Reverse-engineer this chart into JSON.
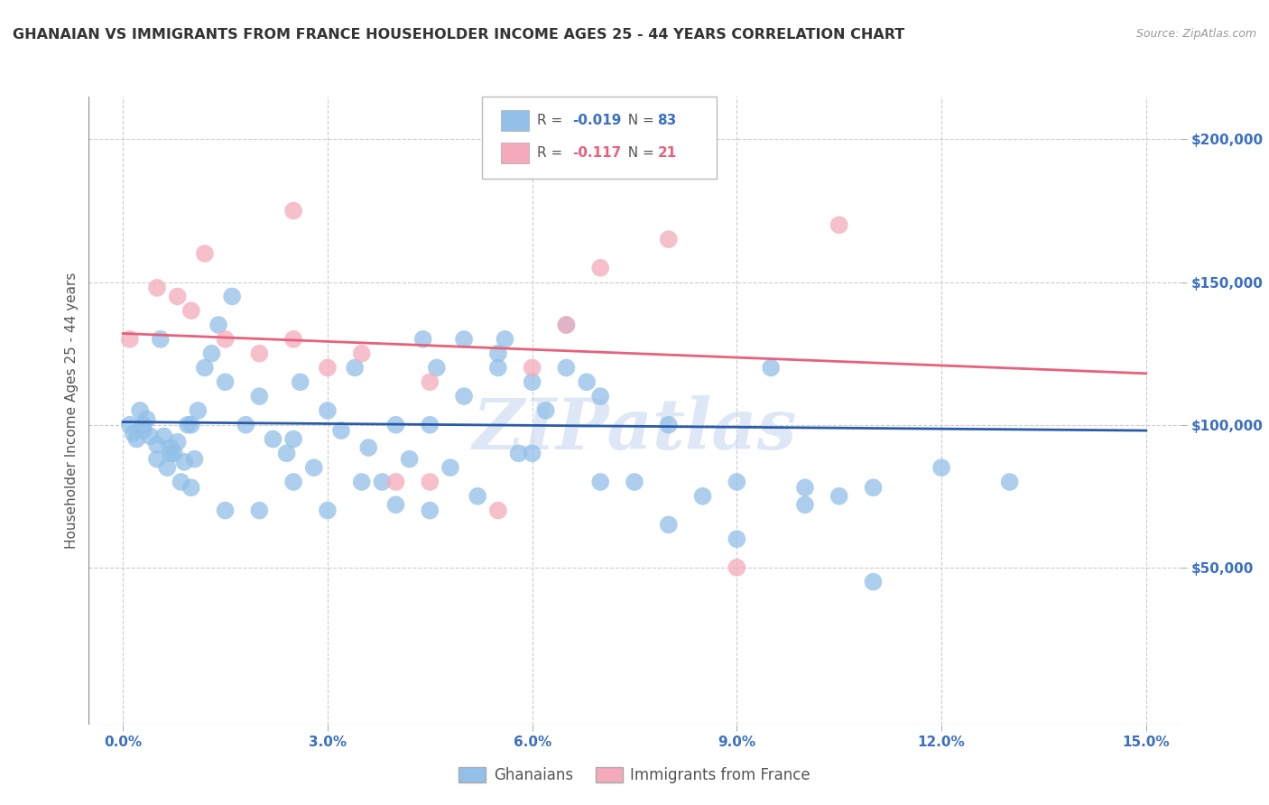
{
  "title": "GHANAIAN VS IMMIGRANTS FROM FRANCE HOUSEHOLDER INCOME AGES 25 - 44 YEARS CORRELATION CHART",
  "source": "Source: ZipAtlas.com",
  "xlabel_vals": [
    0.0,
    3.0,
    6.0,
    9.0,
    12.0,
    15.0
  ],
  "ylabel": "Householder Income Ages 25 - 44 years",
  "ylabel_vals": [
    50000,
    100000,
    150000,
    200000
  ],
  "ylabel_labels": [
    "$50,000",
    "$100,000",
    "$150,000",
    "$200,000"
  ],
  "xlim": [
    -0.5,
    15.5
  ],
  "ylim": [
    -5000,
    215000
  ],
  "blue_R": "-0.019",
  "blue_N": "83",
  "pink_R": "-0.117",
  "pink_N": "21",
  "blue_color": "#92C0E8",
  "pink_color": "#F4AABB",
  "blue_line_color": "#2B5BA8",
  "pink_line_color": "#E8607A",
  "watermark": "ZIPatlas",
  "legend_blue_label": "Ghanaians",
  "legend_pink_label": "Immigrants from France",
  "blue_x": [
    0.1,
    0.15,
    0.2,
    0.25,
    0.3,
    0.35,
    0.4,
    0.5,
    0.55,
    0.6,
    0.65,
    0.7,
    0.75,
    0.8,
    0.85,
    0.9,
    0.95,
    1.0,
    1.05,
    1.1,
    1.2,
    1.3,
    1.4,
    1.5,
    1.6,
    1.8,
    2.0,
    2.2,
    2.4,
    2.6,
    2.8,
    3.0,
    3.2,
    3.4,
    3.6,
    3.8,
    4.0,
    4.2,
    4.4,
    4.6,
    4.8,
    5.0,
    5.2,
    5.5,
    5.6,
    5.8,
    6.0,
    6.2,
    6.5,
    6.8,
    7.0,
    7.5,
    8.0,
    8.5,
    9.0,
    9.5,
    10.0,
    10.5,
    11.0,
    12.0,
    0.3,
    0.5,
    0.7,
    1.0,
    1.5,
    2.0,
    2.5,
    3.0,
    3.5,
    4.0,
    4.5,
    5.0,
    5.5,
    6.0,
    7.0,
    8.0,
    9.0,
    10.0,
    11.0,
    13.0,
    2.5,
    4.5,
    6.5
  ],
  "blue_y": [
    100000,
    97000,
    95000,
    105000,
    98000,
    102000,
    96000,
    93000,
    130000,
    96000,
    85000,
    92000,
    90000,
    94000,
    80000,
    87000,
    100000,
    100000,
    88000,
    105000,
    120000,
    125000,
    135000,
    115000,
    145000,
    100000,
    110000,
    95000,
    90000,
    115000,
    85000,
    105000,
    98000,
    120000,
    92000,
    80000,
    100000,
    88000,
    130000,
    120000,
    85000,
    110000,
    75000,
    125000,
    130000,
    90000,
    115000,
    105000,
    120000,
    115000,
    110000,
    80000,
    100000,
    75000,
    80000,
    120000,
    78000,
    75000,
    78000,
    85000,
    100000,
    88000,
    90000,
    78000,
    70000,
    70000,
    80000,
    70000,
    80000,
    72000,
    100000,
    130000,
    120000,
    90000,
    80000,
    65000,
    60000,
    72000,
    45000,
    80000,
    95000,
    70000,
    135000
  ],
  "pink_x": [
    0.1,
    0.5,
    0.8,
    1.0,
    1.2,
    1.5,
    2.0,
    2.5,
    3.0,
    3.5,
    4.0,
    4.5,
    5.5,
    6.0,
    6.5,
    7.0,
    8.0,
    9.0,
    10.5,
    2.5,
    4.5
  ],
  "pink_y": [
    130000,
    148000,
    145000,
    140000,
    160000,
    130000,
    125000,
    175000,
    120000,
    125000,
    80000,
    80000,
    70000,
    120000,
    135000,
    155000,
    165000,
    50000,
    170000,
    130000,
    115000
  ],
  "blue_trend_x": [
    0.0,
    15.0
  ],
  "blue_trend_y": [
    101000,
    98000
  ],
  "pink_trend_x": [
    0.0,
    15.0
  ],
  "pink_trend_y": [
    132000,
    118000
  ],
  "grid_color": "#CCCCCC",
  "bg_color": "#FFFFFF"
}
